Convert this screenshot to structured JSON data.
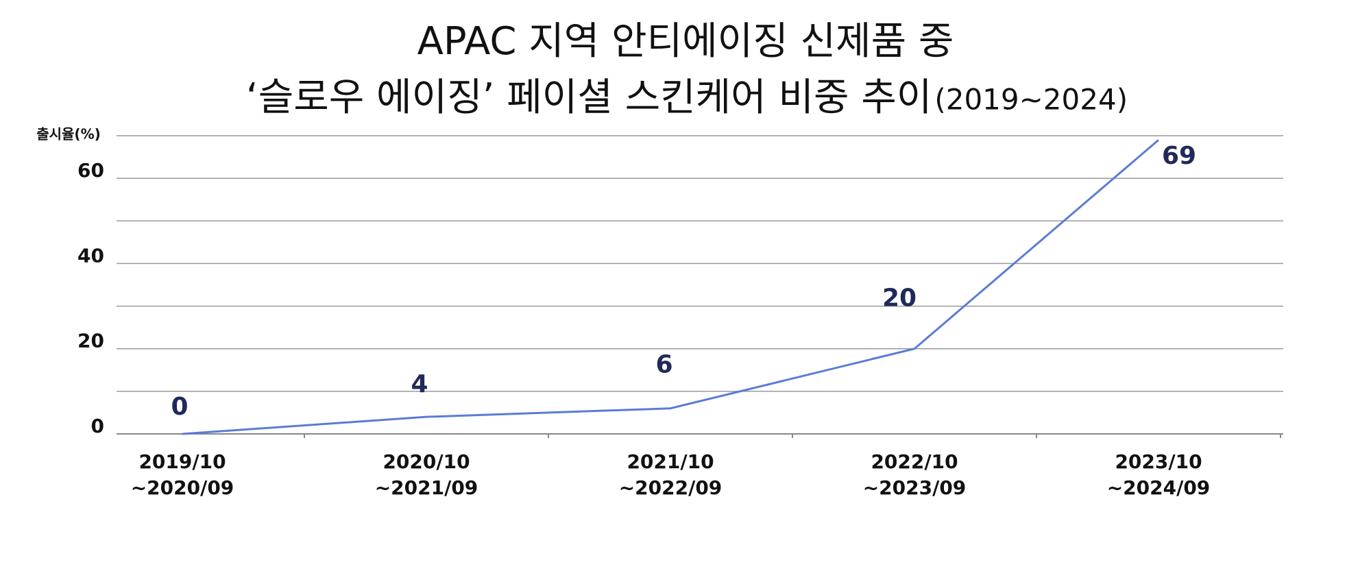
{
  "chart_data": {
    "type": "line",
    "title": [
      "APAC 지역 안티에이징 신제품 중",
      "‘슬로우 에이징’ 페이셜 스킨케어 비중 추이",
      "(2019~2024)"
    ],
    "y_label": "출시율(%)",
    "categories": [
      [
        "2019/10",
        "~2020/09"
      ],
      [
        "2020/10",
        "~2021/09"
      ],
      [
        "2021/10",
        "~2022/09"
      ],
      [
        "2022/10",
        "~2023/09"
      ],
      [
        "2023/10",
        "~2024/09"
      ]
    ],
    "series": [
      {
        "name": "출시율",
        "color": "#5b7bd5",
        "values": [
          0,
          4,
          6,
          20,
          69
        ]
      }
    ],
    "ylim": [
      0,
      70
    ],
    "yticks": [
      0,
      20,
      40,
      60
    ],
    "minor_yticks": [
      10,
      30,
      50,
      70
    ],
    "grid": true
  }
}
